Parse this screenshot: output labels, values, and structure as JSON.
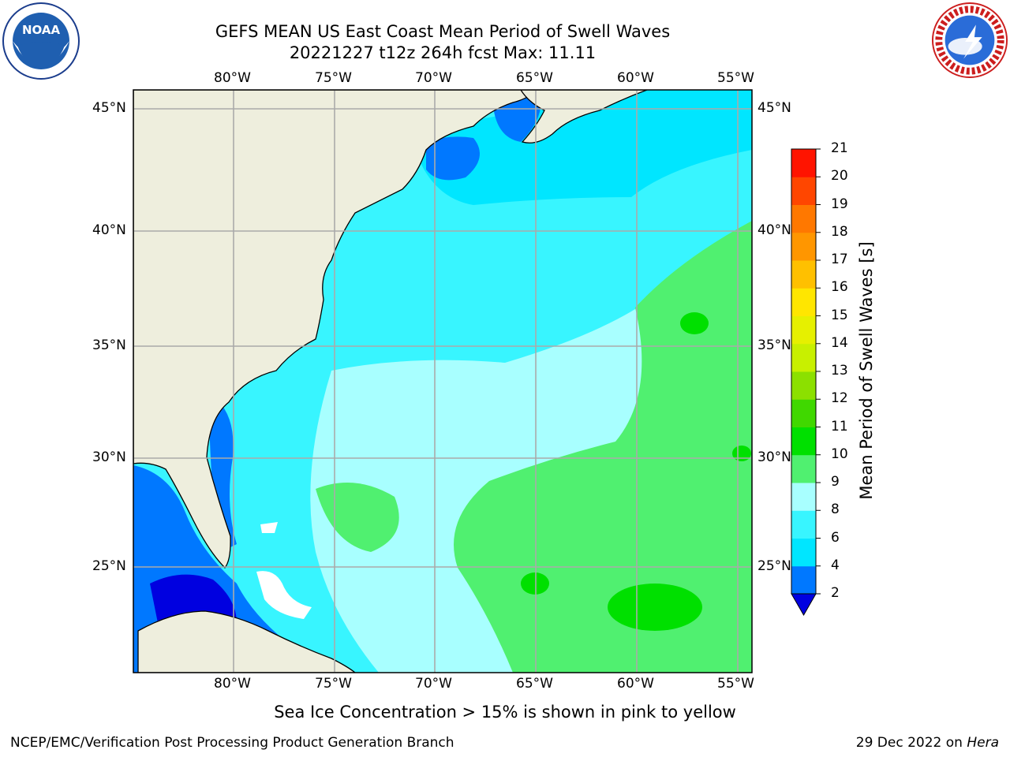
{
  "title_line1": "GEFS MEAN US East Coast Mean Period of Swell Waves",
  "title_line2": "20221227 t12z 264h fcst   Max: 11.11",
  "axes": {
    "lon_labels": [
      "80°W",
      "75°W",
      "70°W",
      "65°W",
      "60°W",
      "55°W"
    ],
    "lat_labels": [
      "45°N",
      "40°N",
      "35°N",
      "30°N",
      "25°N"
    ]
  },
  "colorbar": {
    "title": "Mean Period of Swell Waves [s]",
    "ticks": [
      "21",
      "20",
      "19",
      "18",
      "17",
      "16",
      "15",
      "14",
      "13",
      "12",
      "11",
      "10",
      "9",
      "8",
      "6",
      "4",
      "2"
    ],
    "colors": [
      "#0000e0",
      "#0078ff",
      "#00e6ff",
      "#38f5ff",
      "#a8ffff",
      "#50f070",
      "#00e000",
      "#40d800",
      "#8ce000",
      "#c8f000",
      "#e6f000",
      "#ffe600",
      "#ffc000",
      "#ff9600",
      "#ff7800",
      "#ff4600",
      "#ff1400",
      "#ff0000"
    ]
  },
  "map": {
    "land_color": "#eeeedd",
    "grid_color": "#aaaaaa"
  },
  "sea_ice_note": "Sea Ice Concentration > 15% is shown in pink to yellow",
  "credit": "NCEP/EMC/Verification Post Processing Product Generation Branch",
  "date_text": "29 Dec 2022 on",
  "date_host": "Hera",
  "logos": {
    "noaa": "NOAA",
    "nws": "NATIONAL WEATHER SERVICE"
  }
}
